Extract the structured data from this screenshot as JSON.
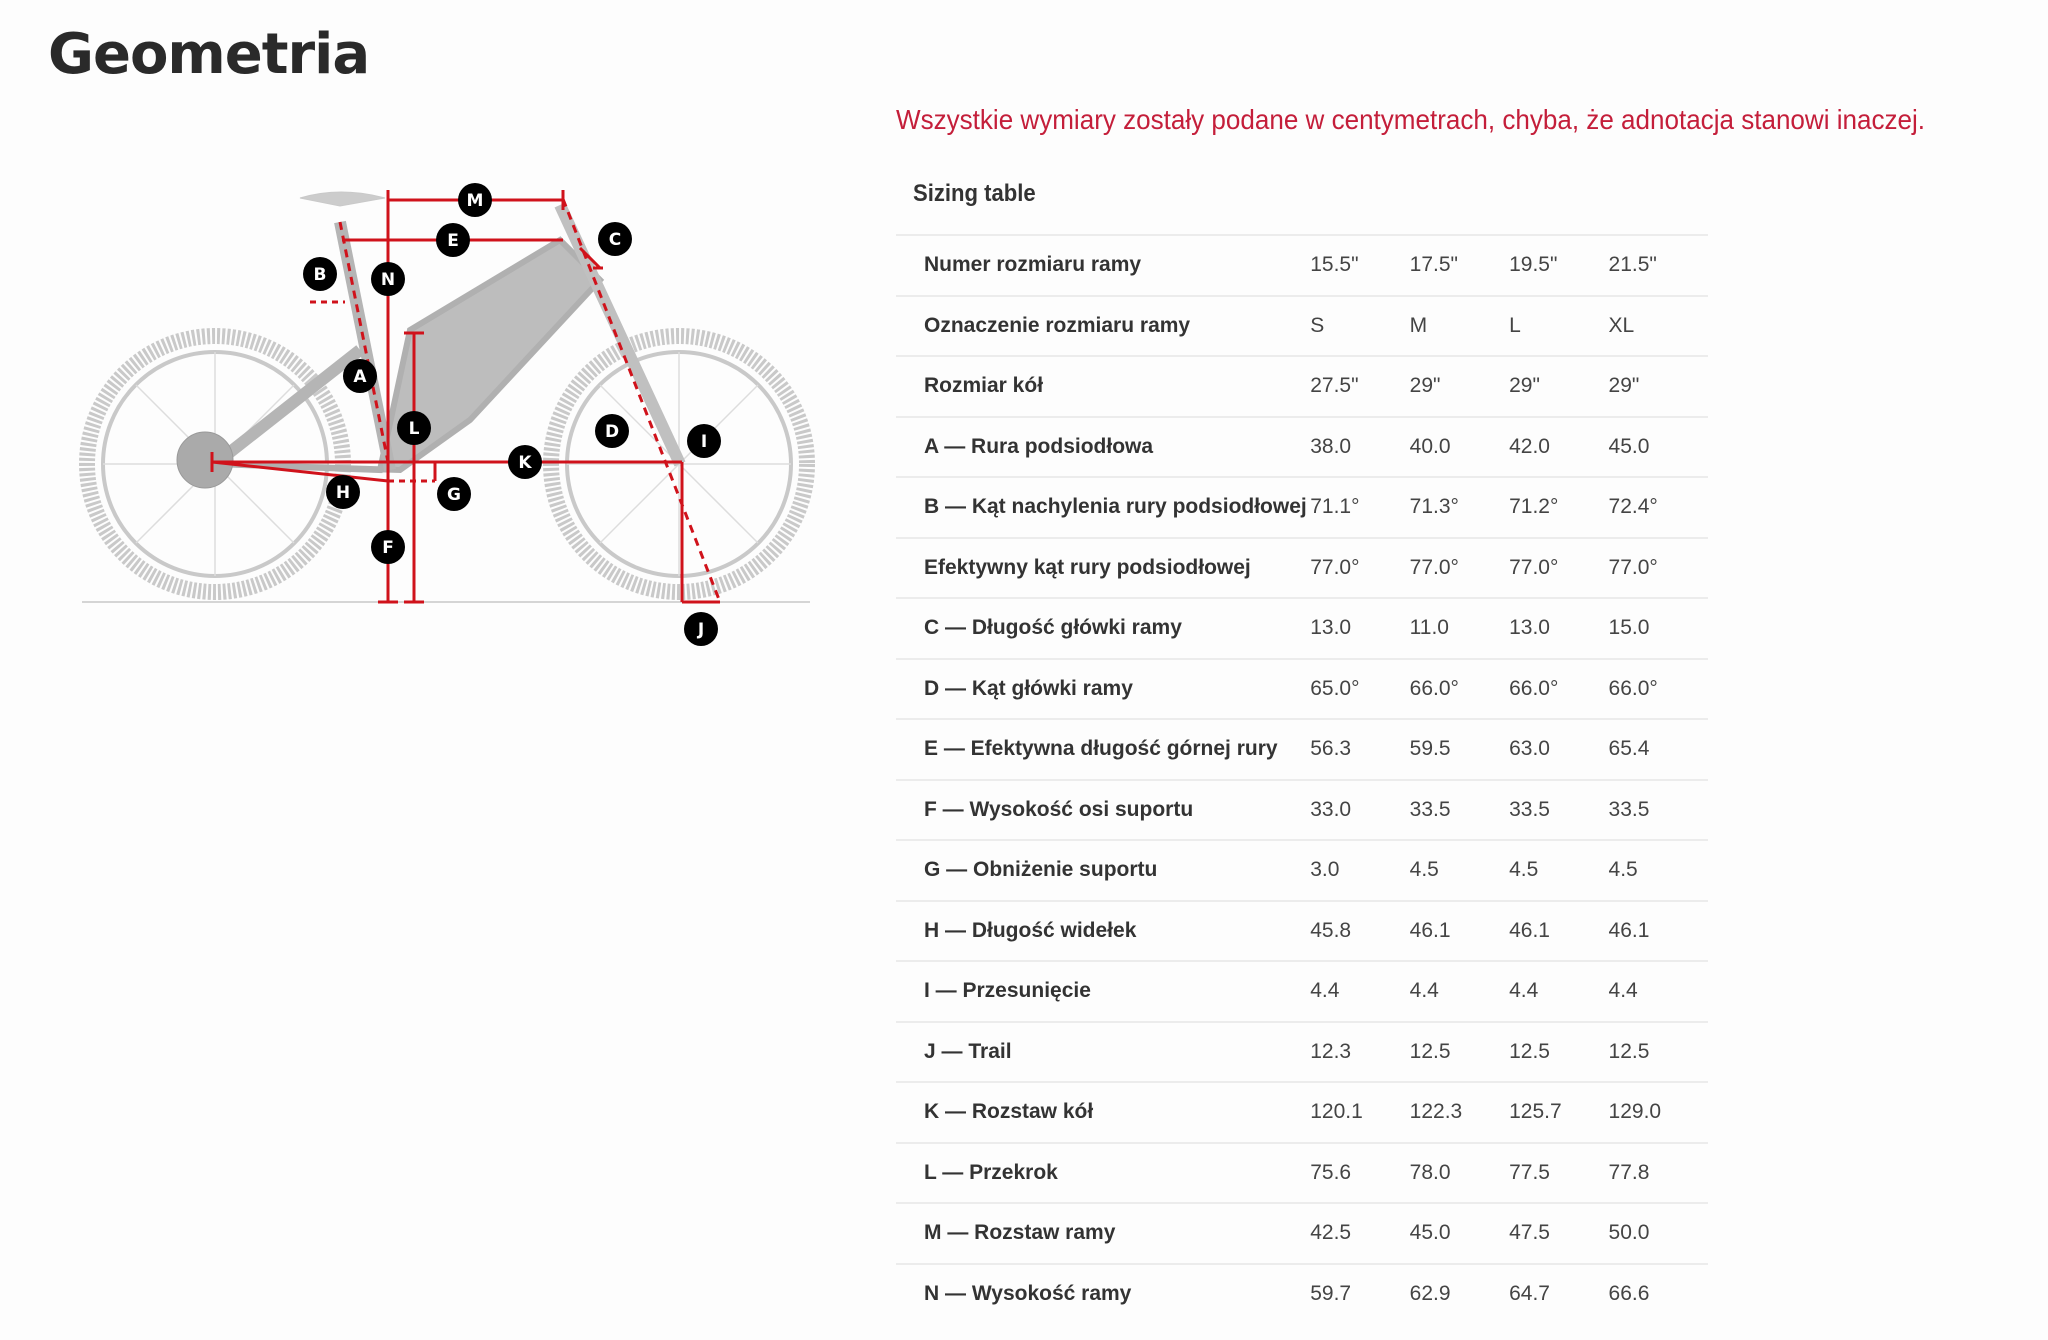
{
  "title": "Geometria",
  "note": "Wszystkie wymiary zostały podane w centymetrach, chyba, że adnotacja stanowi inaczej.",
  "table_title": "Sizing table",
  "colors": {
    "accent": "#c41e3a",
    "dimension_lines": "#d0121b"
  },
  "diagram_labels": [
    "M",
    "E",
    "C",
    "B",
    "N",
    "A",
    "L",
    "D",
    "I",
    "K",
    "H",
    "G",
    "F",
    "J"
  ],
  "rows": [
    {
      "label": "Numer rozmiaru ramy",
      "values": [
        "15.5\"",
        "17.5\"",
        "19.5\"",
        "21.5\""
      ]
    },
    {
      "label": "Oznaczenie rozmiaru ramy",
      "values": [
        "S",
        "M",
        "L",
        "XL"
      ]
    },
    {
      "label": "Rozmiar kół",
      "values": [
        "27.5\"",
        "29\"",
        "29\"",
        "29\""
      ]
    },
    {
      "label": "A — Rura podsiodłowa",
      "values": [
        "38.0",
        "40.0",
        "42.0",
        "45.0"
      ]
    },
    {
      "label": "B — Kąt nachylenia rury podsiodłowej",
      "values": [
        "71.1°",
        "71.3°",
        "71.2°",
        "72.4°"
      ]
    },
    {
      "label": "Efektywny kąt rury podsiodłowej",
      "values": [
        "77.0°",
        "77.0°",
        "77.0°",
        "77.0°"
      ]
    },
    {
      "label": "C — Długość główki ramy",
      "values": [
        "13.0",
        "11.0",
        "13.0",
        "15.0"
      ]
    },
    {
      "label": "D — Kąt główki ramy",
      "values": [
        "65.0°",
        "66.0°",
        "66.0°",
        "66.0°"
      ]
    },
    {
      "label": "E — Efektywna długość górnej rury",
      "values": [
        "56.3",
        "59.5",
        "63.0",
        "65.4"
      ]
    },
    {
      "label": "F — Wysokość osi suportu",
      "values": [
        "33.0",
        "33.5",
        "33.5",
        "33.5"
      ]
    },
    {
      "label": "G — Obniżenie suportu",
      "values": [
        "3.0",
        "4.5",
        "4.5",
        "4.5"
      ]
    },
    {
      "label": "H — Długość widełek",
      "values": [
        "45.8",
        "46.1",
        "46.1",
        "46.1"
      ]
    },
    {
      "label": "I — Przesunięcie",
      "values": [
        "4.4",
        "4.4",
        "4.4",
        "4.4"
      ]
    },
    {
      "label": "J — Trail",
      "values": [
        "12.3",
        "12.5",
        "12.5",
        "12.5"
      ]
    },
    {
      "label": "K — Rozstaw kół",
      "values": [
        "120.1",
        "122.3",
        "125.7",
        "129.0"
      ]
    },
    {
      "label": "L — Przekrok",
      "values": [
        "75.6",
        "78.0",
        "77.5",
        "77.8"
      ]
    },
    {
      "label": "M — Rozstaw ramy",
      "values": [
        "42.5",
        "45.0",
        "47.5",
        "50.0"
      ]
    },
    {
      "label": "N — Wysokość ramy",
      "values": [
        "59.7",
        "62.9",
        "64.7",
        "66.6"
      ]
    }
  ]
}
